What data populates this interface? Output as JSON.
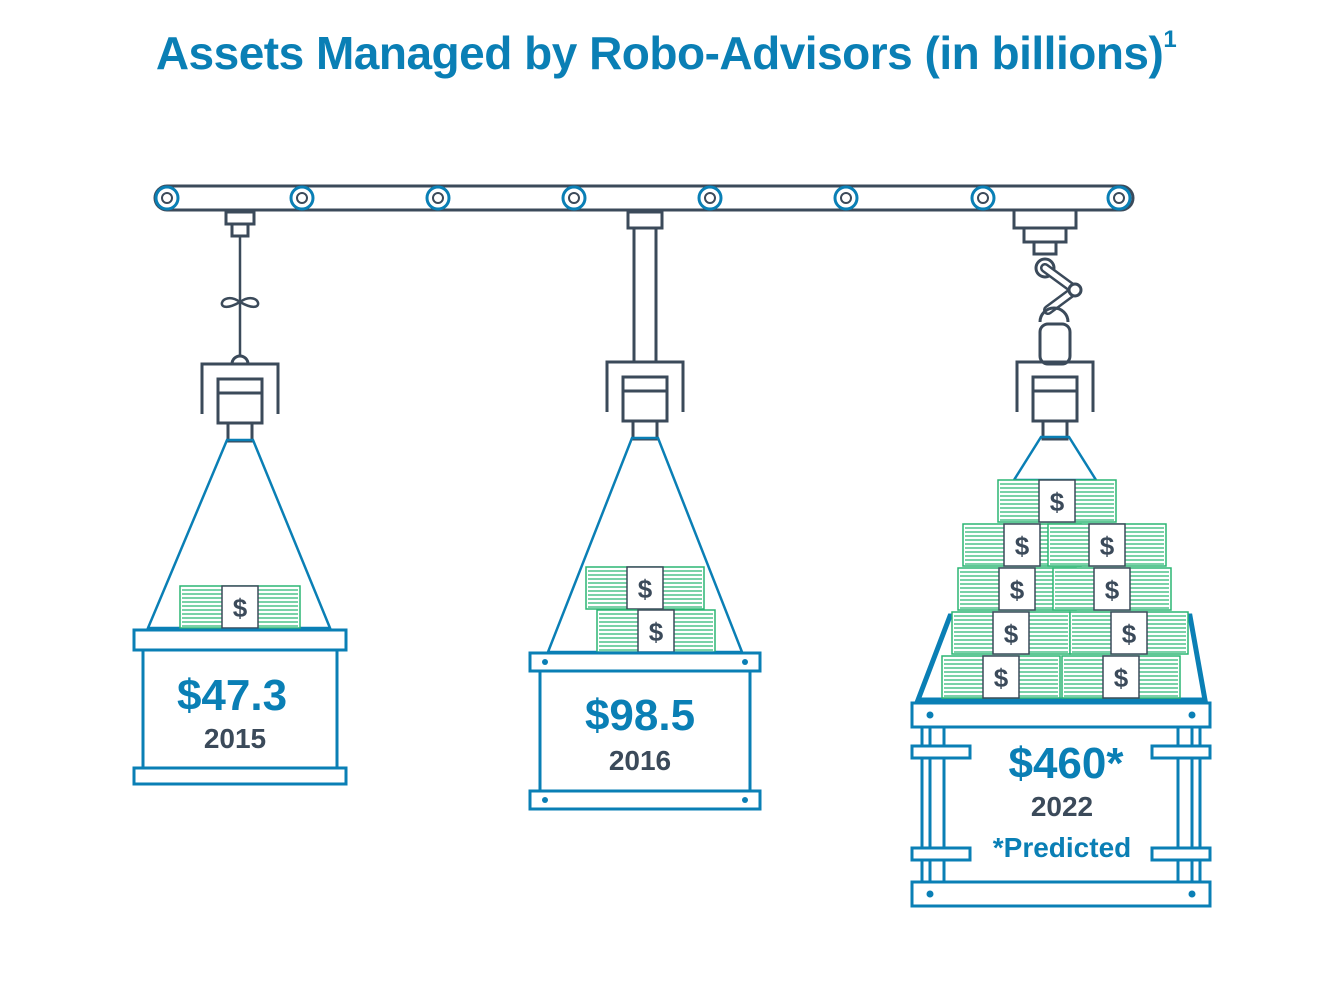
{
  "chart_data": {
    "type": "bar",
    "title": "Assets Managed by Robo-Advisors (in billions)",
    "title_footnote": "1",
    "categories": [
      "2015",
      "2016",
      "2022"
    ],
    "values": [
      47.3,
      98.5,
      460
    ],
    "value_labels": [
      "$47.3",
      "$98.5",
      "$460*"
    ],
    "note": "*Predicted",
    "currency_symbol": "$",
    "bundles_shown": [
      1,
      2,
      9
    ]
  },
  "colors": {
    "accent": "#0a7fb5",
    "dark": "#3b4a5a",
    "money": "#2bb673"
  }
}
